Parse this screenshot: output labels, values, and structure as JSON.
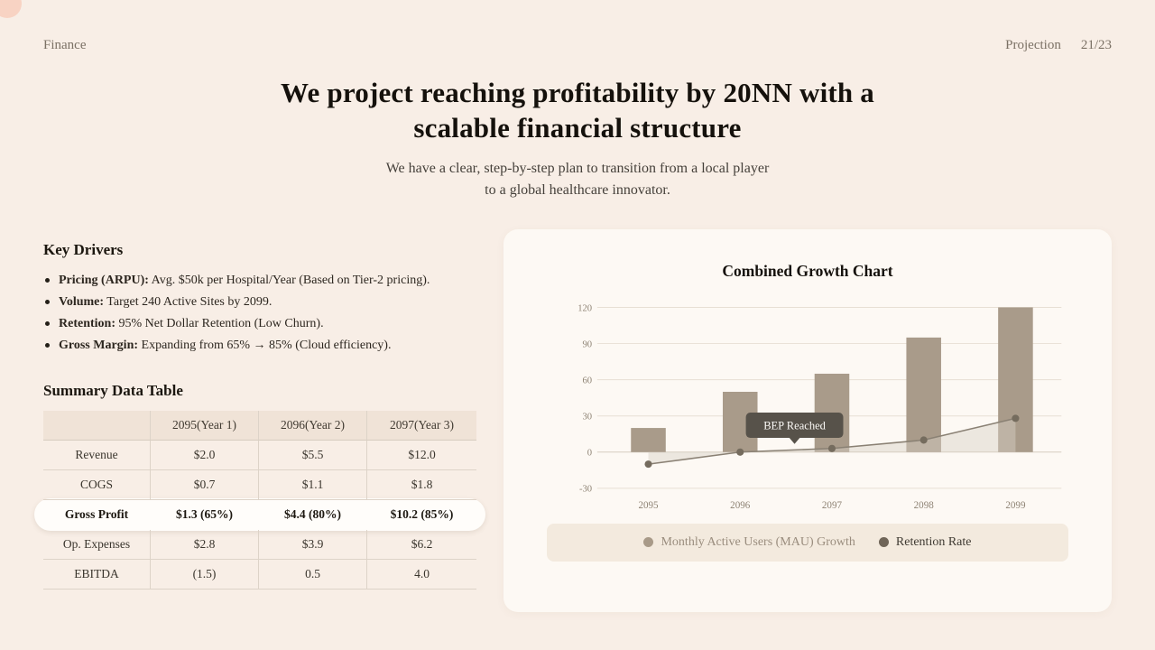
{
  "meta": {
    "category": "Finance",
    "section": "Projection",
    "page": "21/23"
  },
  "title": {
    "line1": "We project reaching profitability by 20NN with a",
    "line2": "scalable financial structure"
  },
  "subtitle": {
    "line1": "We have a clear, step-by-step plan to transition from a local player",
    "line2": "to a global healthcare innovator."
  },
  "key_drivers": {
    "heading": "Key Drivers",
    "items": [
      {
        "label": "Pricing (ARPU):",
        "text": "Avg. $50k per Hospital/Year (Based on Tier-2 pricing)."
      },
      {
        "label": "Volume:",
        "text": "Target 240 Active Sites by 2099."
      },
      {
        "label": "Retention:",
        "text": "95% Net Dollar Retention (Low Churn)."
      },
      {
        "label": "Gross Margin:",
        "text": "Expanding from 65% → 85% (Cloud efficiency)."
      }
    ]
  },
  "summary_table": {
    "heading": "Summary Data Table",
    "columns": [
      "",
      "2095(Year 1)",
      "2096(Year 2)",
      "2097(Year 3)"
    ],
    "rows": [
      {
        "label": "Revenue",
        "values": [
          "$2.0",
          "$5.5",
          "$12.0"
        ],
        "highlight": false
      },
      {
        "label": "COGS",
        "values": [
          "$0.7",
          "$1.1",
          "$1.8"
        ],
        "highlight": false
      },
      {
        "label": "Gross Profit",
        "values": [
          "$1.3 (65%)",
          "$4.4 (80%)",
          "$10.2 (85%)"
        ],
        "highlight": true
      },
      {
        "label": "Op. Expenses",
        "values": [
          "$2.8",
          "$3.9",
          "$6.2"
        ],
        "highlight": false
      },
      {
        "label": "EBITDA",
        "values": [
          "(1.5)",
          "0.5",
          "4.0"
        ],
        "highlight": false
      }
    ]
  },
  "chart_card": {
    "title": "Combined Growth Chart",
    "badge": "BEP Reached",
    "legend": [
      {
        "label": "Monthly Active Users (MAU) Growth",
        "dot_color": "#a89a88",
        "text_color": "#9a8d7e"
      },
      {
        "label": "Retention Rate",
        "dot_color": "#6f6558",
        "text_color": "#3f3a32"
      }
    ]
  },
  "chart_data": {
    "type": "bar",
    "title": "Combined Growth Chart",
    "categories": [
      "2095",
      "2096",
      "2097",
      "2098",
      "2099"
    ],
    "series": [
      {
        "name": "Monthly Active Users (MAU) Growth",
        "type": "bar",
        "values": [
          20,
          50,
          65,
          95,
          120
        ]
      },
      {
        "name": "Retention Rate",
        "type": "line",
        "values": [
          -10,
          0,
          3,
          10,
          28
        ]
      }
    ],
    "yticks": [
      -30,
      0,
      30,
      60,
      90,
      120
    ],
    "ylim": [
      -30,
      120
    ],
    "grid": true,
    "legend_position": "bottom",
    "annotation": "BEP Reached"
  },
  "colors": {
    "background": "#f8eee6",
    "card": "#fdf9f4",
    "bar": "#a99b8a",
    "line": "#8a8174",
    "dot": "#756c5e",
    "area": "#d7d0c5",
    "grid": "#e7dfd4",
    "zero_line": "#d6cdc0",
    "axis_text": "#8e8374",
    "badge_bg": "#57524a",
    "badge_text": "#fbf9f6",
    "highlight_row": "#fffdfa"
  }
}
